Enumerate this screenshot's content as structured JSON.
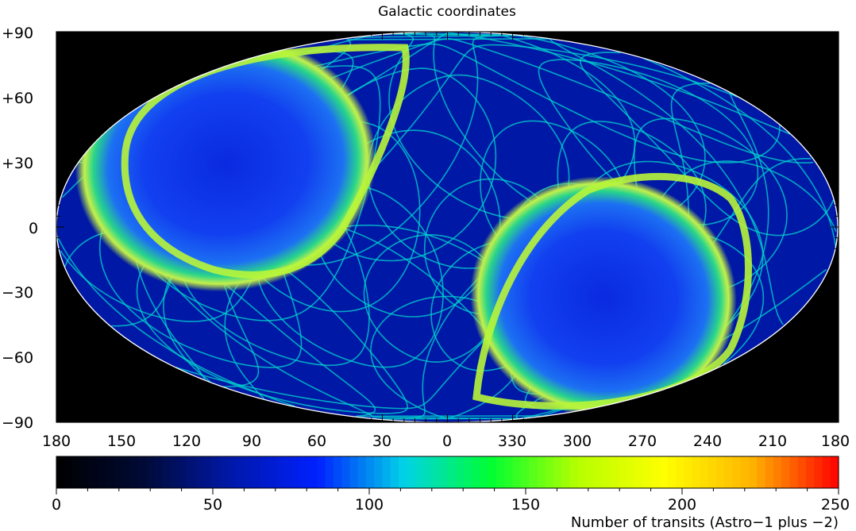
{
  "chart_data": {
    "type": "heatmap",
    "title": "Galactic coordinates",
    "projection": "Aitoff (equal-area ellipse), all-sky",
    "x_axis": {
      "quantity": "galactic longitude (deg)",
      "range": [
        180,
        -180
      ],
      "tick_labels": [
        "180",
        "150",
        "120",
        "90",
        "60",
        "30",
        "0",
        "330",
        "300",
        "270",
        "240",
        "210",
        "180"
      ]
    },
    "y_axis": {
      "quantity": "galactic latitude (deg)",
      "range": [
        -90,
        90
      ],
      "tick_labels": [
        "+90",
        "+60",
        "+30",
        "0",
        "−30",
        "−60",
        "−90"
      ]
    },
    "colorbar": {
      "label": "Number of transits (Astro−1 plus −2)",
      "range": [
        0,
        250
      ],
      "tick_labels": [
        "0",
        "50",
        "100",
        "150",
        "200",
        "250"
      ],
      "colormap": [
        "#000000",
        "#000a35",
        "#0018a8",
        "#0020ff",
        "#00d2e8",
        "#00ff32",
        "#b6ff00",
        "#ffff00",
        "#ffb400",
        "#ff0000"
      ]
    },
    "features": {
      "background_level": 55,
      "dense_regions": [
        {
          "center_lon": 110,
          "center_lat": 25,
          "interior_level": 65,
          "edge_level": 175
        },
        {
          "center_lon": 280,
          "center_lat": -30,
          "interior_level": 65,
          "edge_level": 175
        }
      ],
      "scan_arc_level": 115
    },
    "colors": {
      "background": "#ffffff",
      "plot_background": "#000000",
      "ellipse_outline": "#ffffff",
      "text": "#000000"
    }
  }
}
